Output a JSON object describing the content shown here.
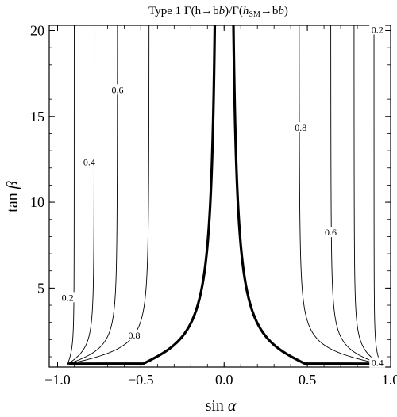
{
  "chart_data": {
    "type": "line",
    "title": "Type 1 Γ(h→bb̄)/Γ(h_SM→bb̄)",
    "title_parts": {
      "prefix": "Type 1 Γ(h→b",
      "b1": "b",
      "mid": ")/Γ(",
      "h": "h",
      "sub": "SM",
      "arrow": "→b",
      "b2": "b",
      "close": ")"
    },
    "xlabel": "sin α",
    "ylabel": "tan β",
    "xlabel_parts": {
      "fn": "sin",
      "var": "α"
    },
    "ylabel_parts": {
      "fn": "tan",
      "var": "β"
    },
    "xlim": [
      -1.05,
      1.0
    ],
    "ylim": [
      0.4,
      20.3
    ],
    "x_ticks": [
      {
        "value": -1.0,
        "label": "−1.0"
      },
      {
        "value": -0.5,
        "label": "−0.5"
      },
      {
        "value": 0.0,
        "label": "0.0"
      },
      {
        "value": 0.5,
        "label": "0.5"
      },
      {
        "value": 1.0,
        "label": "1.0"
      }
    ],
    "y_ticks": [
      {
        "value": 5,
        "label": "5"
      },
      {
        "value": 10,
        "label": "10"
      },
      {
        "value": 15,
        "label": "15"
      },
      {
        "value": 20,
        "label": "20"
      }
    ],
    "grid": false,
    "series": [
      {
        "level": 1.0,
        "thick": true
      },
      {
        "level": 0.8,
        "thick": false
      },
      {
        "level": 0.6,
        "thick": false
      },
      {
        "level": 0.4,
        "thick": false
      },
      {
        "level": 0.2,
        "thick": false
      }
    ],
    "annotations": [
      {
        "text": "0.2",
        "x": -0.94,
        "y": 4.4
      },
      {
        "text": "0.4",
        "x": -0.81,
        "y": 12.3
      },
      {
        "text": "0.6",
        "x": -0.64,
        "y": 16.5
      },
      {
        "text": "0.8",
        "x": -0.54,
        "y": 2.2
      },
      {
        "text": "0.2",
        "x": 0.92,
        "y": 20.0
      },
      {
        "text": "0.8",
        "x": 0.46,
        "y": 14.3
      },
      {
        "text": "0.6",
        "x": 0.64,
        "y": 8.2
      },
      {
        "text": "0.4",
        "x": 0.92,
        "y": 0.6
      }
    ]
  }
}
